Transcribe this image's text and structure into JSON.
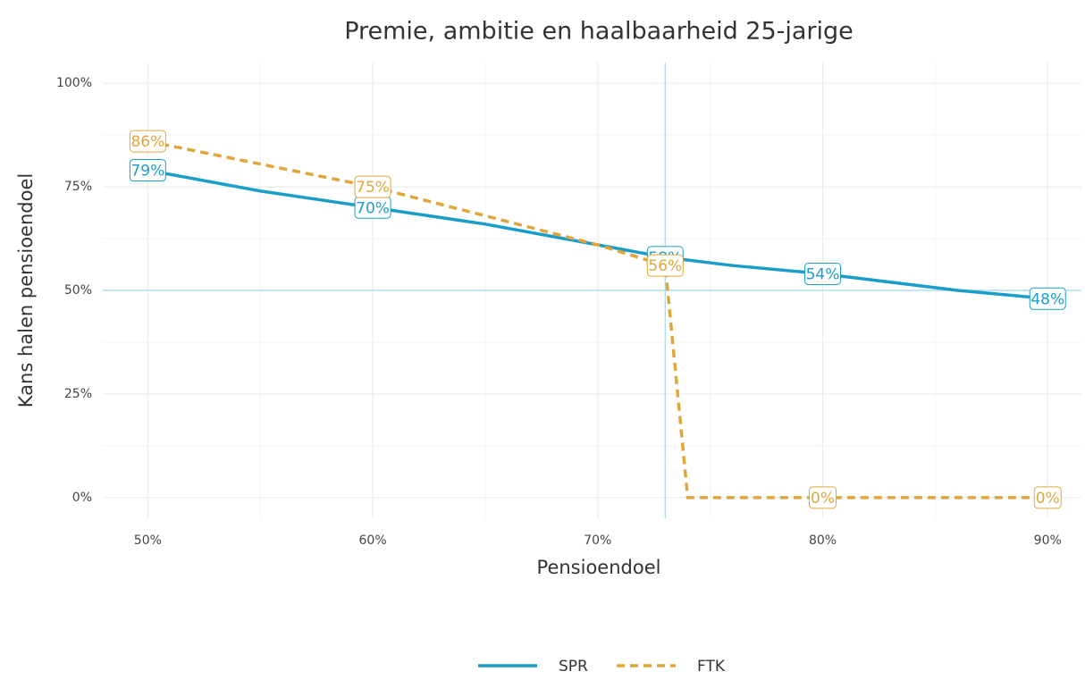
{
  "chart_data": {
    "type": "line",
    "title": "Premie, ambitie en haalbaarheid 25-jarige",
    "x_label": "Pensioendoel",
    "y_label": "Kans halen pensioendoel",
    "xlim": [
      48,
      91.5
    ],
    "ylim": [
      -5,
      105
    ],
    "xticks": [
      {
        "value": 50,
        "label": "50%"
      },
      {
        "value": 60,
        "label": "60%"
      },
      {
        "value": 70,
        "label": "70%"
      },
      {
        "value": 80,
        "label": "80%"
      },
      {
        "value": 90,
        "label": "90%"
      }
    ],
    "yticks": [
      {
        "value": 0,
        "label": "0%"
      },
      {
        "value": 25,
        "label": "25%"
      },
      {
        "value": 50,
        "label": "50%"
      },
      {
        "value": 75,
        "label": "75%"
      },
      {
        "value": 100,
        "label": "100%"
      }
    ],
    "grid": true,
    "vline": 73,
    "hline": 50,
    "reference_color": "#a8d8ea",
    "legend": "bottom",
    "series": [
      {
        "name": "SPR",
        "color": "#1a9ec9",
        "dash": false,
        "x": [
          50,
          55,
          60,
          65,
          70,
          73,
          76,
          80,
          86,
          90
        ],
        "values": [
          79,
          74,
          70,
          66,
          61,
          58,
          56,
          54,
          50,
          48
        ],
        "value_labels": [
          "79%",
          null,
          "70%",
          null,
          null,
          "58%",
          null,
          "54%",
          null,
          "48%"
        ]
      },
      {
        "name": "FTK",
        "color": "#e0a63a",
        "dash": true,
        "x": [
          50,
          60,
          70,
          73,
          74,
          80,
          90
        ],
        "values": [
          86,
          75,
          61,
          56,
          0,
          0,
          0
        ],
        "value_labels": [
          "86%",
          "75%",
          null,
          "56%",
          null,
          "0%",
          "0%"
        ]
      }
    ]
  }
}
